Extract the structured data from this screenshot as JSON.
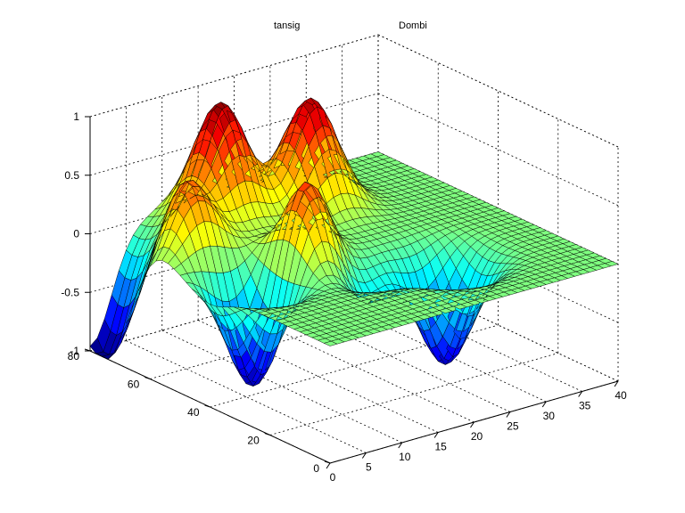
{
  "figure": {
    "titles": [
      "tansig",
      "Dombi"
    ]
  },
  "chart_data": {
    "type": "surface",
    "colormap": "jet",
    "grid": true,
    "xlim": [
      0,
      40
    ],
    "ylim": [
      0,
      80
    ],
    "zlim": [
      -1,
      1
    ],
    "x_ticks": [
      "0",
      "5",
      "10",
      "15",
      "20",
      "25",
      "30",
      "35",
      "40"
    ],
    "y_ticks": [
      "0",
      "20",
      "40",
      "60",
      "80"
    ],
    "z_ticks": [
      "-1",
      "-0.5",
      "0",
      "0.5",
      "1"
    ],
    "mesh": {
      "x_count": 40,
      "y_count": 40
    },
    "features": [
      {
        "x": 5,
        "y": 60,
        "z": 0.65
      },
      {
        "x": 14,
        "y": 70,
        "z": 1.0
      },
      {
        "x": 24,
        "y": 64,
        "z": 0.93
      },
      {
        "x": 14,
        "y": 40,
        "z": 0.78
      },
      {
        "x": 6,
        "y": 40,
        "z": -0.95
      },
      {
        "x": 0,
        "y": 78,
        "z": -0.95
      },
      {
        "x": 0,
        "y": 68,
        "z": -0.45
      },
      {
        "x": 26,
        "y": 24,
        "z": -0.9
      },
      {
        "x": 17,
        "y": 32,
        "z": -0.4
      }
    ]
  }
}
